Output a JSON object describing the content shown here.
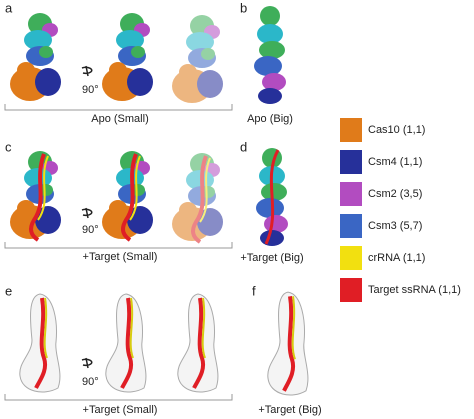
{
  "panels": [
    {
      "label": "a",
      "caption": "Apo (Small)",
      "rotation": "90°"
    },
    {
      "label": "b",
      "caption": "Apo (Big)"
    },
    {
      "label": "c",
      "caption": "+Target (Small)",
      "rotation": "90°"
    },
    {
      "label": "d",
      "caption": "+Target (Big)"
    },
    {
      "label": "e",
      "caption": "+Target (Small)",
      "rotation": "90°"
    },
    {
      "label": "f",
      "caption": "+Target (Big)"
    }
  ],
  "legend": [
    {
      "label": "Cas10 (1,1)",
      "color": "#e07b1a"
    },
    {
      "label": "Csm4 (1,1)",
      "color": "#26309a"
    },
    {
      "label": "Csm2 (3,5)",
      "color": "#b24cc0"
    },
    {
      "label": "Csm3 (5,7)",
      "color": "#3a66c4"
    },
    {
      "label": "crRNA (1,1)",
      "color": "#f2e010"
    },
    {
      "label": "Target ssRNA (1,1)",
      "color": "#e01e25"
    }
  ]
}
